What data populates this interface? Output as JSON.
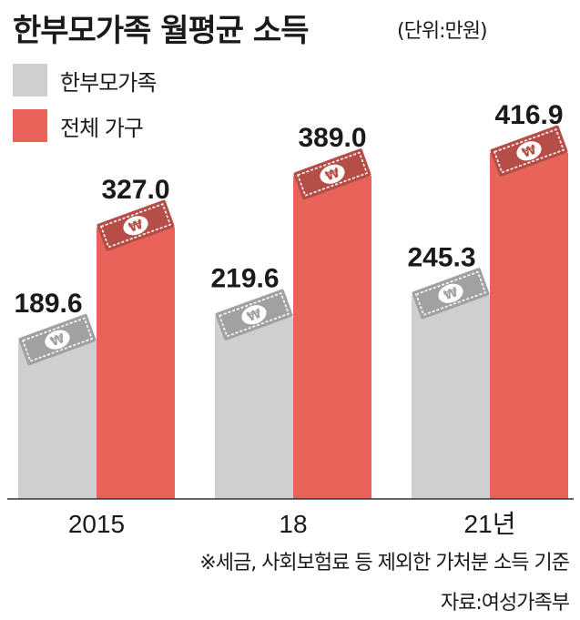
{
  "chart_data": {
    "type": "bar",
    "title": "한부모가족 월평균 소득",
    "unit": "(단위:만원)",
    "categories": [
      "2015",
      "18",
      "21년"
    ],
    "series": [
      {
        "name": "한부모가족",
        "values": [
          189.6,
          219.6,
          245.3
        ],
        "value_labels": [
          "189.6",
          "219.6",
          "245.3"
        ],
        "color": "#cfcfcf"
      },
      {
        "name": "전체 가구",
        "values": [
          327.0,
          389.0,
          416.9
        ],
        "value_labels": [
          "327.0",
          "389.0",
          "416.9"
        ],
        "color": "#e8645a"
      }
    ],
    "xlabel": "",
    "ylabel": "",
    "ylim": [
      0,
      450
    ],
    "legend_position": "top-left",
    "grid": false,
    "bill_icon": "won-bill-icon",
    "footnote": "※세금, 사회보험료 등 제외한 가처분 소득 기준",
    "source": "자료:여성가족부"
  }
}
